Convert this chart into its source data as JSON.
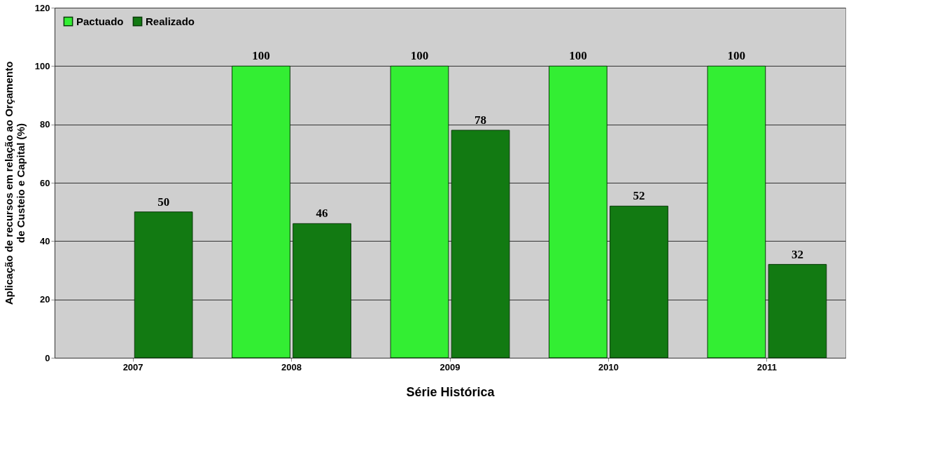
{
  "chart_data": {
    "type": "bar",
    "xlabel": "Série Histórica",
    "ylabel": "Aplicação de recursos em relação ao Orçamento\nde Custeio e Capital (%)",
    "categories": [
      "2007",
      "2008",
      "2009",
      "2010",
      "2011"
    ],
    "series": [
      {
        "name": "Pactuado",
        "color": "#33ee33",
        "values": [
          null,
          100,
          100,
          100,
          100
        ]
      },
      {
        "name": "Realizado",
        "color": "#127a12",
        "values": [
          50,
          46,
          78,
          52,
          32
        ]
      }
    ],
    "ylim": [
      0,
      120
    ],
    "yticks": [
      0,
      20,
      40,
      60,
      80,
      100,
      120
    ],
    "grid": "y",
    "legend": "top left",
    "data_labels": true
  }
}
